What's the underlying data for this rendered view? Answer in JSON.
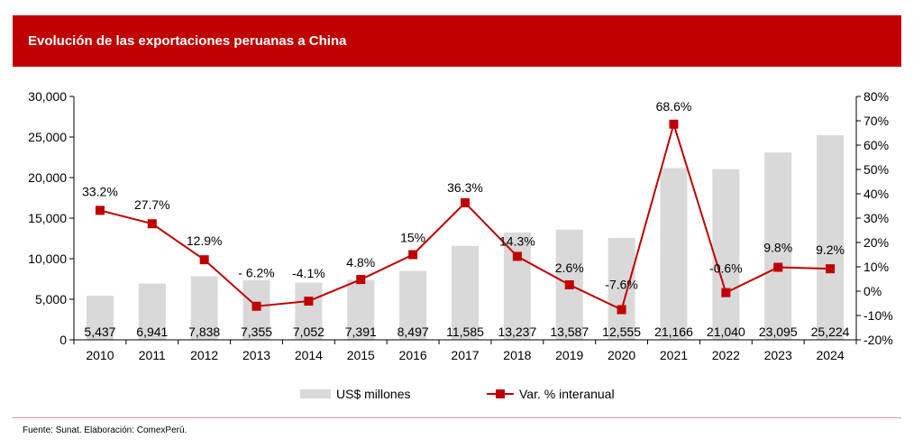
{
  "header": {
    "title": "Evolución de las exportaciones peruanas a China"
  },
  "footer": {
    "source": "Fuente: Sunat. Elaboración: ComexPerú."
  },
  "chart_data": {
    "type": "bar",
    "categories": [
      "2010",
      "2011",
      "2012",
      "2013",
      "2014",
      "2015",
      "2016",
      "2017",
      "2018",
      "2019",
      "2020",
      "2021",
      "2022",
      "2023",
      "2024"
    ],
    "series": [
      {
        "name": "US$ millones",
        "kind": "bar",
        "axis": "left",
        "values": [
          5437,
          6941,
          7838,
          7355,
          7052,
          7391,
          8497,
          11585,
          13237,
          13587,
          12555,
          21166,
          21040,
          23095,
          25224
        ],
        "labels": [
          "5,437",
          "6,941",
          "7,838",
          "7,355",
          "7,052",
          "7,391",
          "8,497",
          "11,585",
          "13,237",
          "13,587",
          "12,555",
          "21,166",
          "21,040",
          "23,095",
          "25,224"
        ]
      },
      {
        "name": "Var. % interanual",
        "kind": "line",
        "axis": "right",
        "values": [
          33.2,
          27.7,
          12.9,
          -6.2,
          -4.1,
          4.8,
          15,
          36.3,
          14.3,
          2.6,
          -7.6,
          68.6,
          -0.6,
          9.8,
          9.2
        ],
        "labels": [
          "33.2%",
          "27.7%",
          "12.9%",
          "- 6.2%",
          "-4.1%",
          "4.8%",
          "15%",
          "36.3%",
          "14.3%",
          "2.6%",
          "-7.6%",
          "68.6%",
          "-0.6%",
          "9.8%",
          "9.2%"
        ]
      }
    ],
    "y_left": {
      "min": 0,
      "max": 30000,
      "ticks": [
        "0",
        "5,000",
        "10,000",
        "15,000",
        "20,000",
        "25,000",
        "30,000"
      ]
    },
    "y_right": {
      "min": -20,
      "max": 80,
      "ticks": [
        "-20%",
        "-10%",
        "0%",
        "10%",
        "20%",
        "30%",
        "40%",
        "50%",
        "60%",
        "70%",
        "80%"
      ]
    },
    "legend": {
      "position": "bottom",
      "items": [
        "US$ millones",
        "Var. % interanual"
      ]
    },
    "colors": {
      "bar": "#d9d9d9",
      "line": "#c00000",
      "header": "#c00000"
    },
    "grid": false
  }
}
